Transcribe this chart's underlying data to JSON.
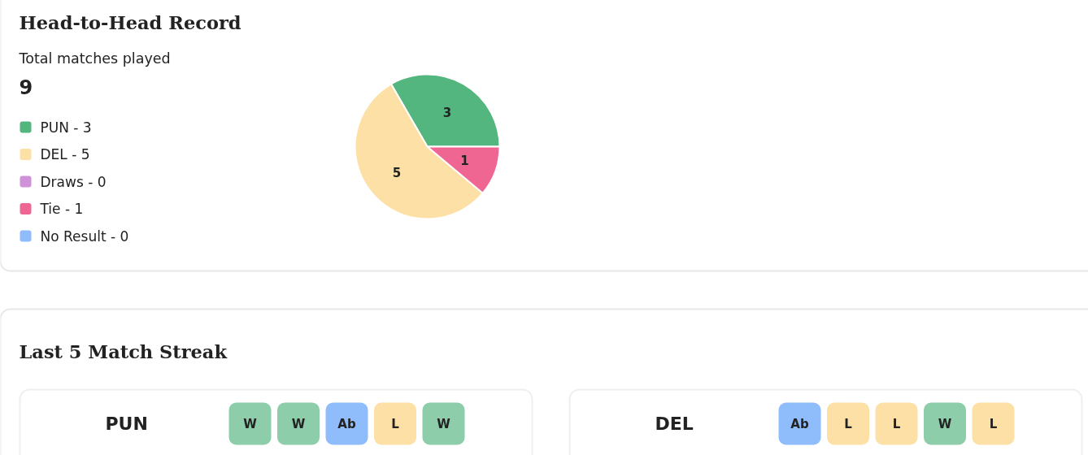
{
  "chart_data": [
    {
      "type": "pie",
      "title": "Head-to-Head Record",
      "subtitle": "Total matches played",
      "annotations": [
        "9"
      ],
      "categories": [
        "PUN - 3",
        "DEL - 5",
        "Draws - 0",
        "Tie - 1",
        "No Result - 0"
      ],
      "values": [
        3,
        5,
        0,
        1,
        0
      ],
      "colors": [
        "#52b67e",
        "#fde0a6",
        "#cf92d9",
        "#f06693",
        "#8ebcfc"
      ],
      "data_labels": true,
      "legend": "left"
    },
    {
      "type": "other",
      "title": "Last 5 Match Streak",
      "annotations": [
        "PUN",
        "DEL"
      ],
      "categories": [
        "W",
        "W",
        "Ab",
        "L",
        "W",
        "Ab",
        "L",
        "L",
        "W",
        "L"
      ],
      "colors": [
        "#8dcdaa",
        "#8dcdaa",
        "#8fbdfc",
        "#fde0a6",
        "#8dcdaa",
        "#8fbdfc",
        "#fde0a6",
        "#fde0a6",
        "#8dcdaa",
        "#fde0a6"
      ]
    }
  ]
}
